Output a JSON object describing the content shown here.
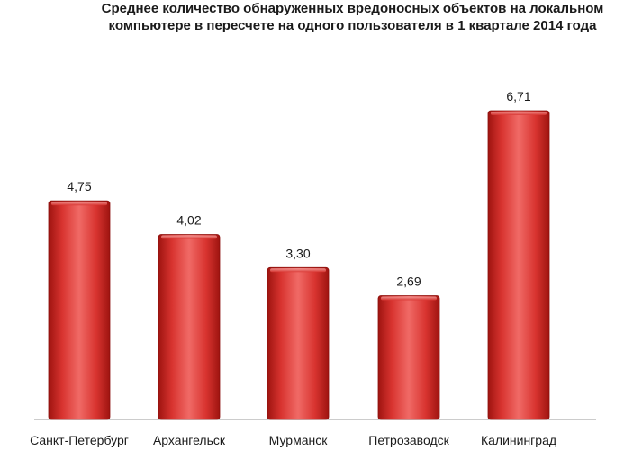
{
  "chart_data": {
    "type": "bar",
    "title_lines": [
      "Среднее количество обнаруженных вредоносных объектов на локальном",
      "компьютере в пересчете на одного пользователя в 1 квартале 2014 года"
    ],
    "categories": [
      "Санкт-Петербург",
      "Архангельск",
      "Мурманск",
      "Петрозаводск",
      "Калининград"
    ],
    "values": [
      4.75,
      4.02,
      3.3,
      2.69,
      6.71
    ],
    "value_labels": [
      "4,75",
      "4,02",
      "3,30",
      "2,69",
      "6,71"
    ],
    "xlabel": "",
    "ylabel": "",
    "ylim": [
      0,
      6.71
    ],
    "grid": false,
    "legend": "none",
    "bar_color": "#d8332f"
  }
}
